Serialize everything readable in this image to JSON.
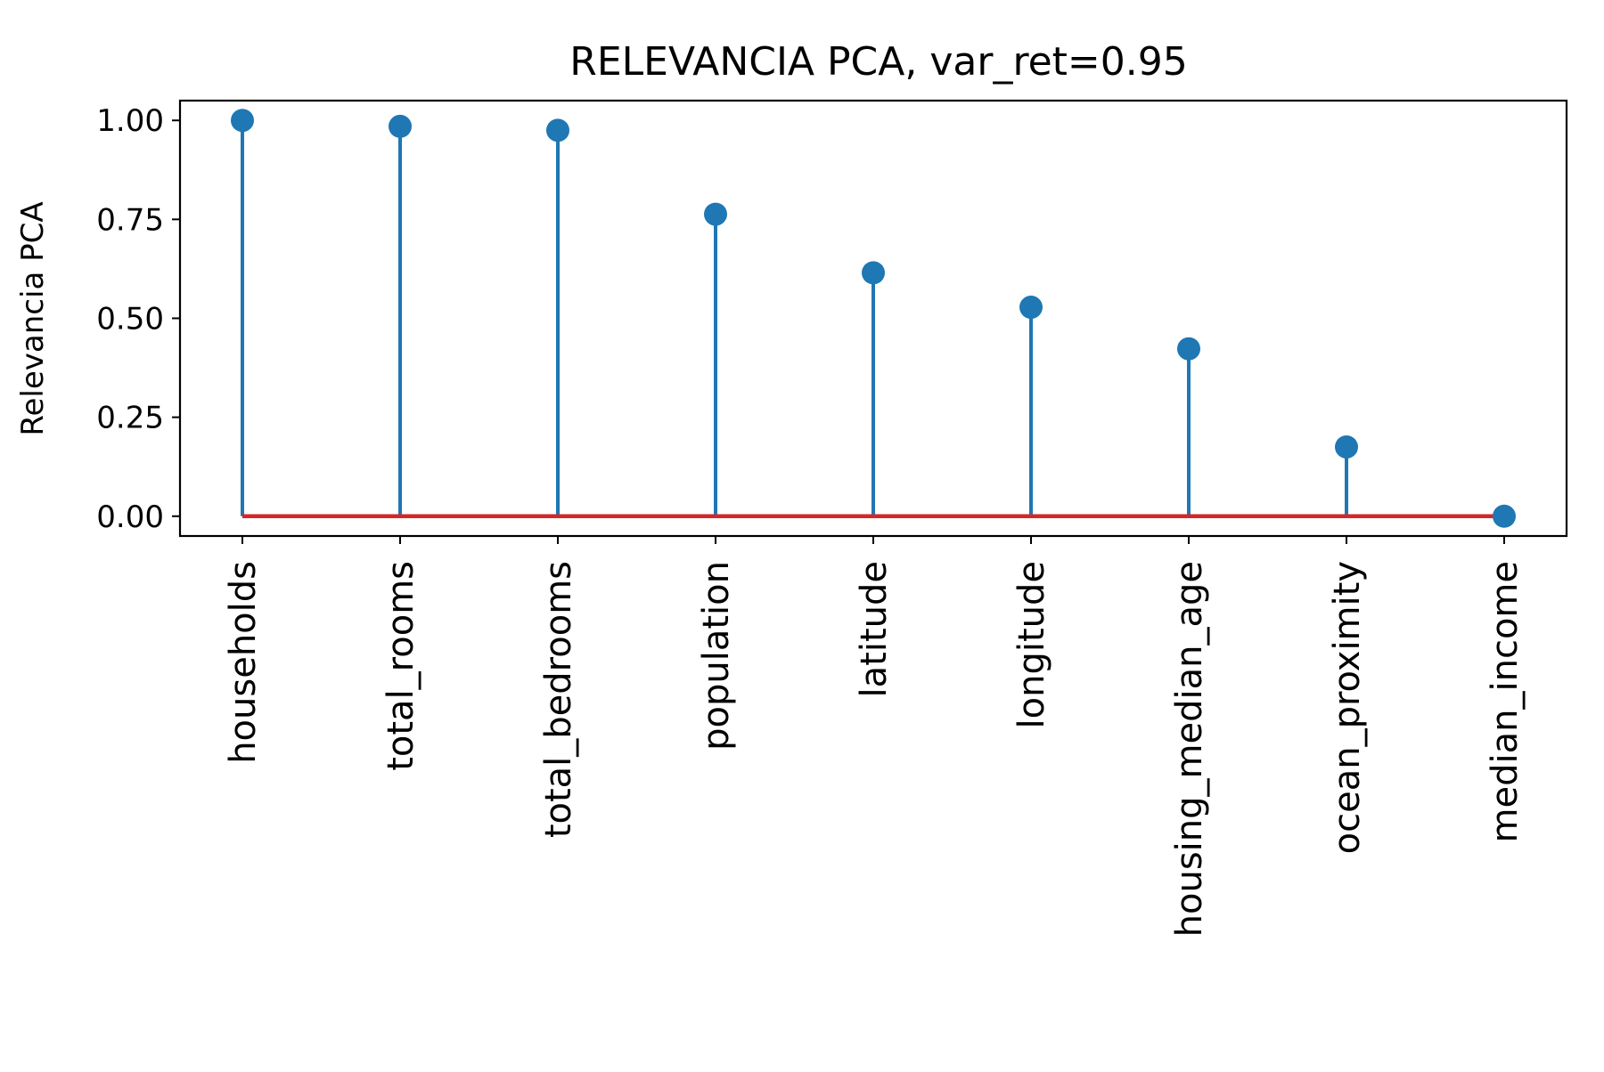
{
  "chart_data": {
    "type": "stem",
    "title": "RELEVANCIA PCA, var_ret=0.95",
    "xlabel": "",
    "ylabel": "Relevancia PCA",
    "categories": [
      "households",
      "total_rooms",
      "total_bedrooms",
      "population",
      "latitude",
      "longitude",
      "housing_median_age",
      "ocean_proximity",
      "median_income"
    ],
    "values": [
      1.0,
      0.985,
      0.975,
      0.763,
      0.615,
      0.528,
      0.423,
      0.175,
      0.0
    ],
    "ylim": [
      -0.05,
      1.05
    ],
    "yticks": [
      "0.00",
      "0.25",
      "0.50",
      "0.75",
      "1.00"
    ],
    "ytick_values": [
      0,
      0.25,
      0.5,
      0.75,
      1.0
    ],
    "grid": false,
    "colors": {
      "stem": "#1f77b4",
      "marker": "#1f77b4",
      "baseline": "#d62728",
      "axes": "#000000"
    }
  }
}
